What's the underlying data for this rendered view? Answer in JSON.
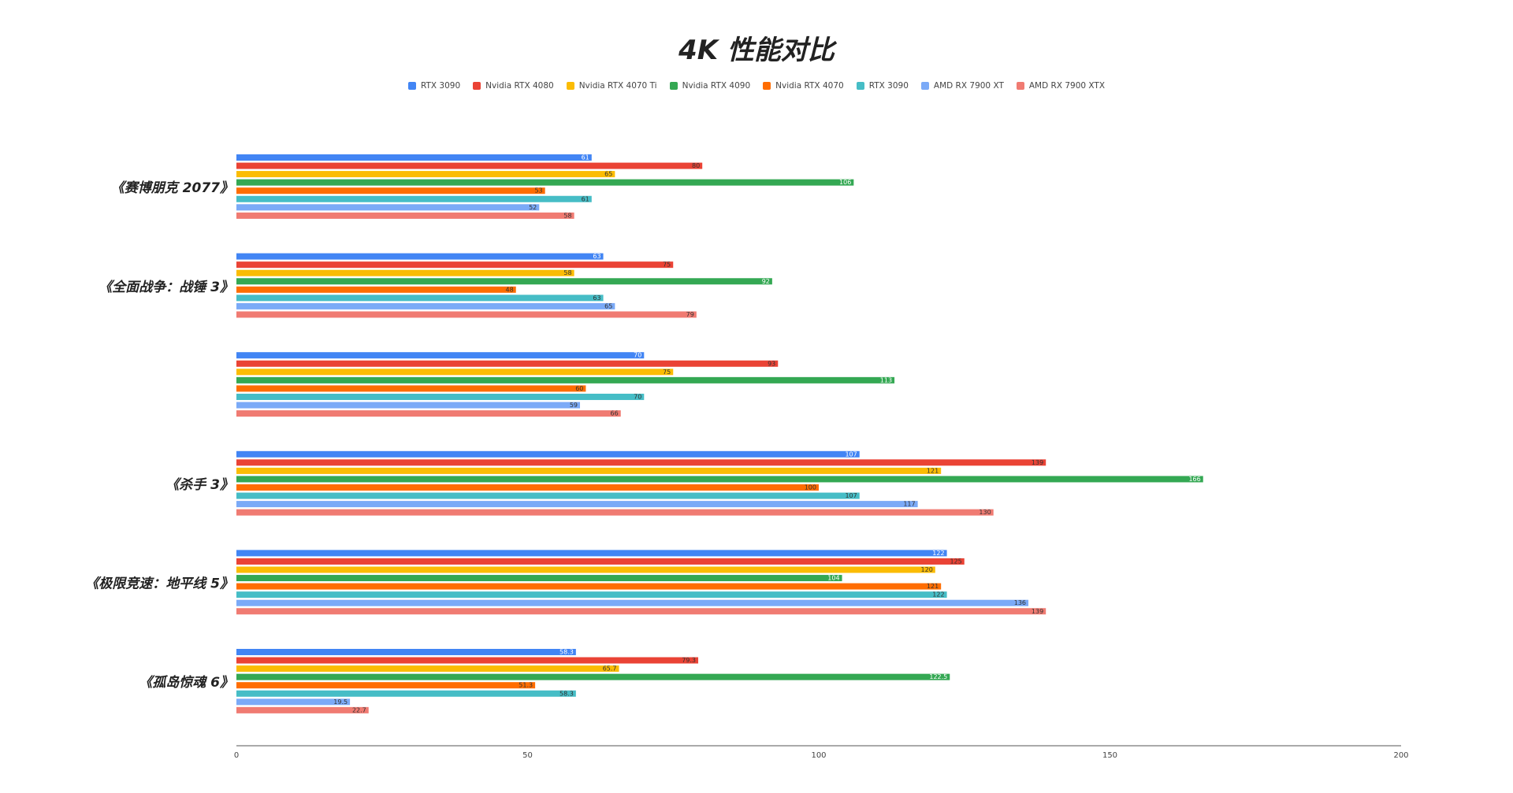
{
  "chart_data": {
    "type": "bar",
    "orientation": "horizontal",
    "title": "4K 性能对比",
    "legend_position": "top",
    "categories": [
      "《赛博朋克 2077》",
      "《全面战争：战锤 3》",
      "",
      "《杀手 3》",
      "《极限竞速：地平线 5》",
      "《孤岛惊魂 6》"
    ],
    "series": [
      {
        "name": "RTX 3090",
        "color": "#4285f4",
        "values": [
          61,
          63,
          70,
          107,
          122,
          58.3
        ],
        "labels": [
          "61",
          "63",
          "70",
          "107",
          "122",
          "58.3"
        ]
      },
      {
        "name": "Nvidia RTX 4080",
        "color": "#ea4335",
        "values": [
          80,
          75,
          93,
          139,
          125,
          79.3
        ],
        "labels": [
          "80",
          "75",
          "93",
          "139",
          "125",
          "79.3"
        ]
      },
      {
        "name": "Nvidia RTX 4070 Ti",
        "color": "#fbbc04",
        "values": [
          65,
          58,
          75,
          121,
          120,
          65.7
        ],
        "labels": [
          "65",
          "58",
          "75",
          "121",
          "120",
          "65.7"
        ]
      },
      {
        "name": "Nvidia RTX 4090",
        "color": "#34a853",
        "values": [
          106,
          92,
          113,
          166,
          104,
          122.5
        ],
        "labels": [
          "106",
          "92",
          "113",
          "166",
          "104",
          "122.5"
        ]
      },
      {
        "name": "Nvidia RTX 4070",
        "color": "#ff6d01",
        "values": [
          53,
          48,
          60,
          100,
          121,
          51.3
        ],
        "labels": [
          "53",
          "48",
          "60",
          "100",
          "121",
          "51.3"
        ]
      },
      {
        "name": "RTX 3090",
        "color": "#46bdc6",
        "values": [
          61,
          63,
          70,
          107,
          122,
          58.3
        ],
        "labels": [
          "61",
          "63",
          "70",
          "107",
          "122",
          "58.3"
        ]
      },
      {
        "name": "AMD RX 7900 XT",
        "color": "#7baaf7",
        "values": [
          52,
          65,
          59,
          117,
          136,
          19.5
        ],
        "labels": [
          "52",
          "65",
          "59",
          "117",
          "136",
          "19.5"
        ]
      },
      {
        "name": "AMD RX 7900 XTX",
        "color": "#f07b72",
        "values": [
          58,
          79,
          66,
          130,
          139,
          22.7
        ],
        "labels": [
          "58",
          "79",
          "66",
          "130",
          "139",
          "22.7"
        ]
      }
    ],
    "xlim": [
      0,
      200
    ],
    "xticks": [
      "0",
      "50",
      "100",
      "150",
      "200"
    ],
    "grid": false
  }
}
